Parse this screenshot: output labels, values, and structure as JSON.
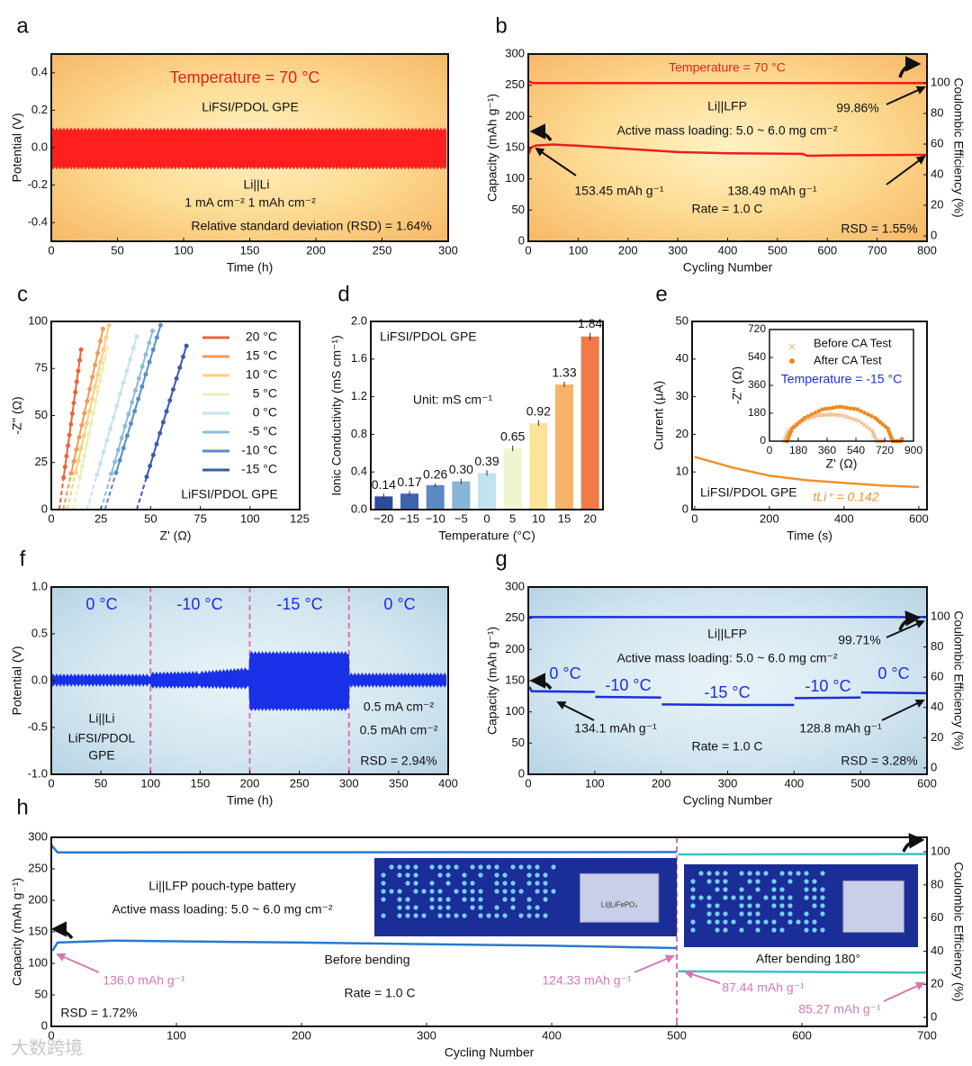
{
  "panel_letters": [
    "a",
    "b",
    "c",
    "d",
    "e",
    "f",
    "g",
    "h"
  ],
  "watermark": "大数跨境",
  "chart_data": [
    {
      "panel": "a",
      "type": "line",
      "xlabel": "Time (h)",
      "ylabel": "Potential (V)",
      "xlim": [
        0,
        300
      ],
      "ylim": [
        -0.5,
        0.5
      ],
      "xticks": [
        "0",
        "50",
        "100",
        "150",
        "200",
        "250",
        "300"
      ],
      "yticks": [
        "-0.4",
        "-0.2",
        "0.0",
        "0.2",
        "0.4"
      ],
      "series": [
        {
          "name": "Li||Li voltage profile",
          "kind": "band",
          "color": "#ff1f1f",
          "x": [
            0,
            300
          ],
          "upper": [
            0.1,
            0.1
          ],
          "lower": [
            -0.11,
            -0.11
          ]
        }
      ],
      "annotations": [
        "Temperature = 70 °C",
        "LiFSI/PDOL GPE",
        "Li||Li",
        "1 mA cm⁻²   1 mAh cm⁻²",
        "Relative standard deviation (RSD) = 1.64%"
      ]
    },
    {
      "panel": "b",
      "type": "line",
      "xlabel": "Cycling Number",
      "ylabel": "Capacity (mAh g⁻¹)",
      "y2label": "Coulombic Efficiency (%)",
      "xlim": [
        0,
        800
      ],
      "ylim": [
        0,
        300
      ],
      "y2lim": [
        -3.5,
        118.8
      ],
      "xticks": [
        "0",
        "100",
        "200",
        "300",
        "400",
        "500",
        "600",
        "700",
        "800"
      ],
      "yticks": [
        "0",
        "50",
        "100",
        "150",
        "200",
        "250",
        "300"
      ],
      "y2ticks": [
        "0",
        "20",
        "40",
        "60",
        "80",
        "100"
      ],
      "series": [
        {
          "name": "Capacity",
          "kind": "line",
          "axis": "y",
          "color": "#ee1c1c",
          "points": [
            [
              1,
              140
            ],
            [
              5,
              150
            ],
            [
              15,
              153.45
            ],
            [
              50,
              155
            ],
            [
              100,
              153
            ],
            [
              200,
              148
            ],
            [
              300,
              143
            ],
            [
              400,
              141
            ],
            [
              550,
              140
            ],
            [
              560,
              137
            ],
            [
              650,
              138
            ],
            [
              800,
              138.49
            ]
          ]
        },
        {
          "name": "Coulombic efficiency",
          "kind": "line",
          "axis": "y2",
          "color": "#ee1c1c",
          "points": [
            [
              0,
              101
            ],
            [
              10,
              99.86
            ],
            [
              800,
              99.86
            ]
          ]
        }
      ],
      "annotations": [
        "Temperature = 70 °C",
        "Li||LFP",
        "99.86%",
        "Active mass loading: 5.0 ~ 6.0 mg cm⁻²",
        "153.45 mAh g⁻¹",
        "138.49 mAh g⁻¹",
        "Rate = 1.0 C",
        "RSD = 1.55%"
      ]
    },
    {
      "panel": "c",
      "type": "line",
      "xlabel": "Z' (Ω)",
      "ylabel": "-Z'' (Ω)",
      "xlim": [
        0,
        125
      ],
      "ylim": [
        0,
        100
      ],
      "xticks": [
        "0",
        "25",
        "50",
        "75",
        "100",
        "125"
      ],
      "yticks": [
        "0",
        "25",
        "50",
        "75",
        "100"
      ],
      "legend_position": "top-right",
      "series": [
        {
          "name": "20 °C",
          "kind": "nyquist",
          "color": "#e8643a",
          "points": [
            [
              4,
              0
            ],
            [
              15,
              85
            ]
          ]
        },
        {
          "name": "15 °C",
          "kind": "nyquist",
          "color": "#f39a55",
          "points": [
            [
              6,
              0
            ],
            [
              26,
              96
            ]
          ]
        },
        {
          "name": "10 °C",
          "kind": "nyquist",
          "color": "#f9cf7c",
          "points": [
            [
              8,
              0
            ],
            [
              29,
              98
            ]
          ]
        },
        {
          "name": "5 °C",
          "kind": "nyquist",
          "color": "#eeedb6",
          "points": [
            [
              11,
              0
            ],
            [
              28,
              86
            ]
          ]
        },
        {
          "name": "0 °C",
          "kind": "nyquist",
          "color": "#c6e2ee",
          "points": [
            [
              18,
              0
            ],
            [
              43,
              92
            ]
          ]
        },
        {
          "name": "-5 °C",
          "kind": "nyquist",
          "color": "#8dbcdb",
          "points": [
            [
              25,
              0
            ],
            [
              51,
              95
            ]
          ]
        },
        {
          "name": "-10 °C",
          "kind": "nyquist",
          "color": "#5a8dc5",
          "points": [
            [
              27,
              0
            ],
            [
              55,
              98
            ]
          ]
        },
        {
          "name": "-15 °C",
          "kind": "nyquist",
          "color": "#3a5ca8",
          "points": [
            [
              43,
              0
            ],
            [
              68,
              87
            ]
          ]
        }
      ],
      "annotations": [
        "LiFSI/PDOL GPE"
      ]
    },
    {
      "panel": "d",
      "type": "bar",
      "xlabel": "Temperature (°C)",
      "ylabel": "Ionic Conductivity (mS cm⁻¹)",
      "ylim": [
        0,
        2.0
      ],
      "yticks": [
        "0.0",
        "0.4",
        "0.8",
        "1.2",
        "1.6",
        "2.0"
      ],
      "categories": [
        "−20",
        "−15",
        "−10",
        "−5",
        "0",
        "5",
        "10",
        "15",
        "20"
      ],
      "values": [
        0.14,
        0.17,
        0.26,
        0.3,
        0.39,
        0.65,
        0.92,
        1.33,
        1.84
      ],
      "value_labels": [
        "0.14",
        "0.17",
        "0.26",
        "0.30",
        "0.39",
        "0.65",
        "0.92",
        "1.33",
        "1.84"
      ],
      "errors": [
        0.03,
        0.03,
        0.02,
        0.03,
        0.03,
        0.03,
        0.03,
        0.03,
        0.04
      ],
      "colors": [
        "#2f4a9a",
        "#3e64ad",
        "#5b8ac2",
        "#86b5d8",
        "#c3e2ef",
        "#eff5cf",
        "#fbe49a",
        "#f8b36a",
        "#f07a48"
      ],
      "annotations": [
        "LiFSI/PDOL GPE",
        "Unit: mS cm⁻¹"
      ]
    },
    {
      "panel": "e",
      "type": "line",
      "xlabel": "Time (s)",
      "ylabel": "Current (μA)",
      "xlim": [
        -7,
        622
      ],
      "ylim": [
        0,
        50
      ],
      "xticks": [
        "0",
        "200",
        "400",
        "600"
      ],
      "yticks": [
        "0",
        "10",
        "20",
        "30",
        "40",
        "50"
      ],
      "series": [
        {
          "name": "Chronoamperometry current",
          "kind": "line",
          "color": "#f0902a",
          "points": [
            [
              0,
              14
            ],
            [
              50,
              12.6
            ],
            [
              100,
              11.2
            ],
            [
              200,
              9
            ],
            [
              300,
              7.8
            ],
            [
              400,
              7.1
            ],
            [
              500,
              6.4
            ],
            [
              600,
              6
            ]
          ]
        }
      ],
      "annotations": [
        "LiFSI/PDOL GPE",
        "tLi⁺ = 0.142"
      ],
      "inset": {
        "type": "scatter",
        "xlabel": "Z' (Ω)",
        "ylabel": "-Z'' (Ω)",
        "xlim": [
          0,
          900
        ],
        "ylim": [
          0,
          720
        ],
        "xticks": [
          "0",
          "180",
          "360",
          "540",
          "720",
          "900"
        ],
        "yticks": [
          "0",
          "180",
          "360",
          "540",
          "720"
        ],
        "series": [
          {
            "name": "Before CA Test",
            "kind": "xmarkers",
            "color": "#f5b27a",
            "points": [
              [
                90,
                0
              ],
              [
                120,
                70
              ],
              [
                200,
                130
              ],
              [
                300,
                165
              ],
              [
                380,
                172
              ],
              [
                460,
                165
              ],
              [
                560,
                130
              ],
              [
                640,
                70
              ],
              [
                670,
                0
              ],
              [
                720,
                0
              ]
            ]
          },
          {
            "name": "After CA Test",
            "kind": "dotmarkers",
            "color": "#f08a22",
            "points": [
              [
                110,
                0
              ],
              [
                140,
                80
              ],
              [
                220,
                150
              ],
              [
                330,
                205
              ],
              [
                440,
                222
              ],
              [
                550,
                205
              ],
              [
                660,
                150
              ],
              [
                740,
                80
              ],
              [
                770,
                0
              ],
              [
                820,
                0
              ],
              [
                830,
                18
              ]
            ]
          }
        ],
        "annotations": [
          "Temperature = -15 °C"
        ]
      }
    },
    {
      "panel": "f",
      "type": "line",
      "xlabel": "Time (h)",
      "ylabel": "Potential (V)",
      "xlim": [
        0,
        400
      ],
      "ylim": [
        -1,
        1
      ],
      "xticks": [
        "0",
        "50",
        "100",
        "150",
        "200",
        "250",
        "300",
        "350",
        "400"
      ],
      "yticks": [
        "-1.0",
        "-0.5",
        "0.0",
        "0.5",
        "1.0"
      ],
      "dividers_x": [
        100,
        200,
        300
      ],
      "series": [
        {
          "name": "Li||Li voltage profile",
          "kind": "band",
          "color": "#1730e8",
          "x": [
            0,
            100,
            100.5,
            150,
            199,
            200,
            300,
            300.5,
            400
          ],
          "upper": [
            0.06,
            0.06,
            0.08,
            0.09,
            0.13,
            0.3,
            0.3,
            0.07,
            0.07
          ],
          "lower": [
            -0.05,
            -0.05,
            -0.07,
            -0.07,
            -0.08,
            -0.31,
            -0.31,
            -0.06,
            -0.06
          ]
        }
      ],
      "annotations": [
        "0 °C",
        "-10 °C",
        "-15 °C",
        "0 °C",
        "Li||Li",
        "LiFSI/PDOL",
        "GPE",
        "0.5 mA cm⁻²",
        "0.5 mAh cm⁻²",
        "RSD = 2.94%"
      ]
    },
    {
      "panel": "g",
      "type": "line",
      "xlabel": "Cycling Number",
      "ylabel": "Capacity (mAh g⁻¹)",
      "y2label": "Coulombic Efficiency (%)",
      "xlim": [
        0,
        600
      ],
      "ylim": [
        0,
        300
      ],
      "y2lim": [
        -4.2,
        119.6
      ],
      "xticks": [
        "0",
        "100",
        "200",
        "300",
        "400",
        "500",
        "600"
      ],
      "yticks": [
        "0",
        "50",
        "100",
        "150",
        "200",
        "250",
        "300"
      ],
      "y2ticks": [
        "0",
        "20",
        "40",
        "60",
        "80",
        "100"
      ],
      "series": [
        {
          "name": "Capacity",
          "kind": "line",
          "axis": "y",
          "color": "#1a2ee0",
          "points": [
            [
              2,
              140
            ],
            [
              5,
              133
            ],
            [
              100,
              132
            ],
            null,
            [
              101,
              124
            ],
            [
              200,
              123
            ],
            null,
            [
              201,
              112
            ],
            [
              300,
              111
            ],
            [
              400,
              111
            ],
            null,
            [
              401,
              122
            ],
            [
              500,
              123
            ],
            null,
            [
              501,
              131
            ],
            [
              600,
              130
            ]
          ]
        },
        {
          "name": "Coulombic efficiency",
          "kind": "line",
          "axis": "y2",
          "color": "#1a2ee0",
          "points": [
            [
              0,
              99.71
            ],
            [
              600,
              99.71
            ]
          ]
        }
      ],
      "annotations": [
        "Li||LFP",
        "99.71%",
        "Active mass loading: 5.0 ~ 6.0 mg cm⁻²",
        "0 °C",
        "-10 °C",
        "-15 °C",
        "-10 °C",
        "0 °C",
        "134.1 mAh g⁻¹",
        "128.8 mAh g⁻¹",
        "Rate = 1.0 C",
        "RSD = 3.28%"
      ]
    },
    {
      "panel": "h",
      "type": "line",
      "xlabel": "Cycling Number",
      "ylabel": "Capacity (mAh g⁻¹)",
      "y2label": "Coulombic Efficiency (%)",
      "xlim": [
        0,
        700
      ],
      "ylim": [
        0,
        300
      ],
      "y2lim": [
        -5.4,
        108.7
      ],
      "xticks": [
        "0",
        "100",
        "200",
        "300",
        "400",
        "500",
        "600",
        "700"
      ],
      "yticks": [
        "0",
        "50",
        "100",
        "150",
        "200",
        "250",
        "300"
      ],
      "y2ticks": [
        "0",
        "20",
        "40",
        "60",
        "80",
        "100"
      ],
      "dividers_x": [
        500
      ],
      "series": [
        {
          "name": "Capacity (before bending)",
          "kind": "line",
          "axis": "y",
          "color": "#2a78d0",
          "points": [
            [
              1,
              120
            ],
            [
              5,
              133
            ],
            [
              50,
              136
            ],
            [
              200,
              133
            ],
            [
              400,
              128
            ],
            [
              500,
              124.33
            ]
          ]
        },
        {
          "name": "CE (before bending)",
          "kind": "line",
          "axis": "y2",
          "color": "#2a78d0",
          "points": [
            [
              0,
              104
            ],
            [
              5,
              99.6
            ],
            [
              500,
              99.8
            ]
          ]
        },
        {
          "name": "Capacity (after bending 180°)",
          "kind": "line",
          "axis": "y",
          "color": "#3cc0c8",
          "points": [
            [
              501,
              87.44
            ],
            [
              600,
              86.5
            ],
            [
              700,
              85.27
            ]
          ]
        },
        {
          "name": "CE (after bending 180°)",
          "kind": "line",
          "axis": "y2",
          "color": "#3cc0c8",
          "points": [
            [
              501,
              98.4
            ],
            [
              700,
              98.6
            ]
          ]
        }
      ],
      "photo_labels": [
        "Li||LiFePO₄"
      ],
      "annotations": [
        "Li||LFP pouch-type battery",
        "Active mass loading: 5.0 ~ 6.0 mg cm⁻²",
        "Before bending",
        "136.0 mAh g⁻¹",
        "124.33 mAh g⁻¹",
        "Rate = 1.0 C",
        "RSD = 1.72%",
        "After bending 180°",
        "87.44 mAh g⁻¹",
        "85.27 mAh g⁻¹"
      ]
    }
  ]
}
